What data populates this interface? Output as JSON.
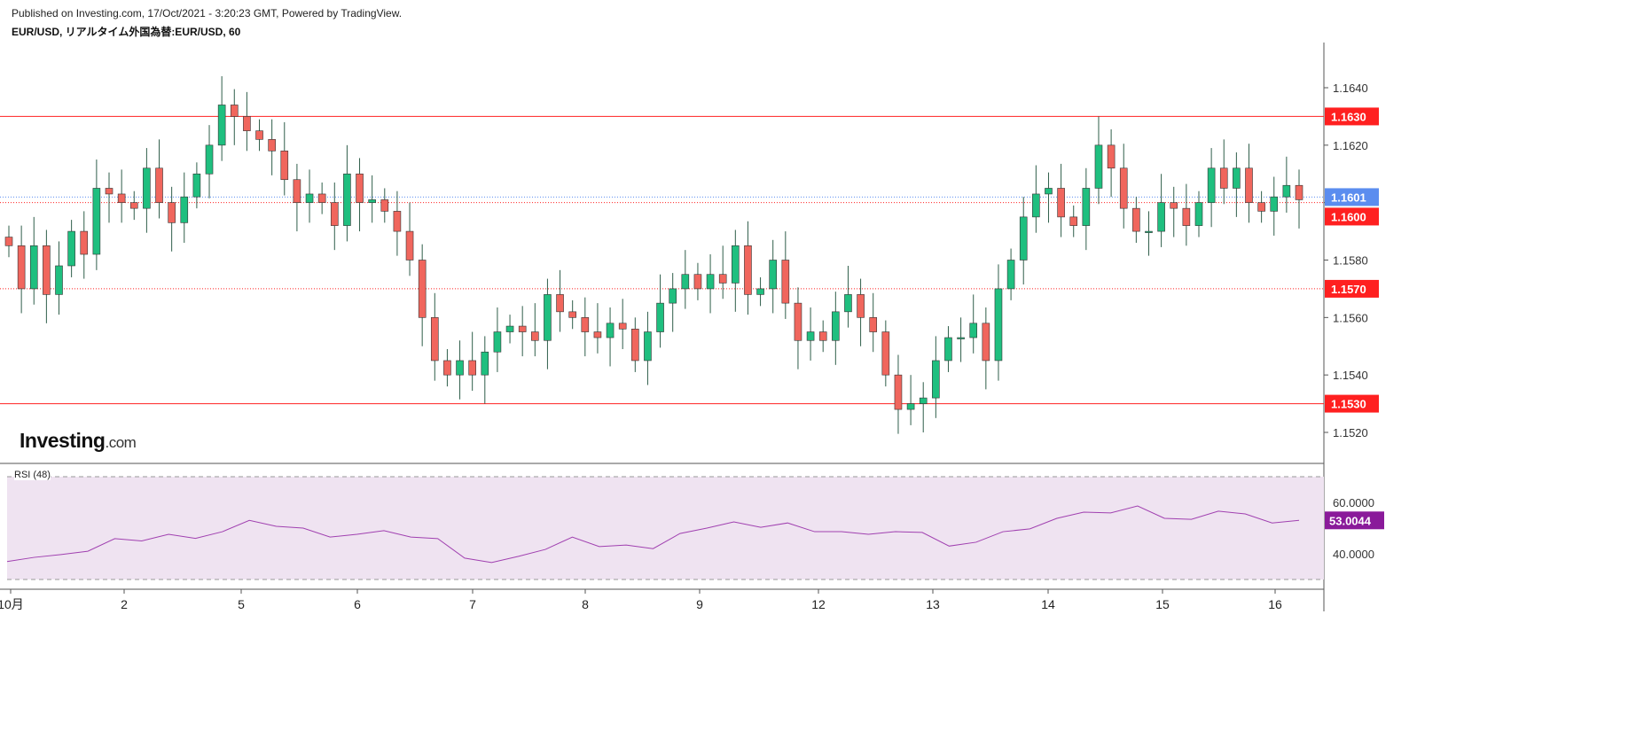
{
  "header": {
    "published": "Published on Investing.com, 17/Oct/2021 - 3:20:23 GMT, Powered by TradingView.",
    "symbol": "EUR/USD, リアルタイム外国為替:EUR/USD, 60"
  },
  "logo": {
    "text": "Investing",
    "suffix": ".com"
  },
  "colors": {
    "up": "#1fbf7f",
    "down": "#f0665d",
    "level": "#ff2020",
    "last": "#5b8def",
    "rsi": "#a040b0",
    "rsi_bg": "#efe3f1"
  },
  "chart_data": [
    {
      "type": "candlestick",
      "title": "EUR/USD, リアルタイム外国為替:EUR/USD, 60",
      "ylim": [
        1.151,
        1.166
      ],
      "y_ticks": [
        "1.1520",
        "1.1540",
        "1.1560",
        "1.1580",
        "1.1600",
        "1.1620",
        "1.1640"
      ],
      "x_ticks": [
        "10月",
        "2",
        "5",
        "6",
        "7",
        "8",
        "9",
        "12",
        "13",
        "14",
        "15",
        "16"
      ],
      "closes": [
        1.1585,
        1.157,
        1.1585,
        1.1568,
        1.1578,
        1.159,
        1.1582,
        1.1605,
        1.1603,
        1.16,
        1.1598,
        1.1612,
        1.16,
        1.1593,
        1.1602,
        1.161,
        1.162,
        1.1634,
        1.163,
        1.1625,
        1.1622,
        1.1618,
        1.1608,
        1.16,
        1.1603,
        1.16,
        1.1592,
        1.161,
        1.16,
        1.1601,
        1.1597,
        1.159,
        1.158,
        1.156,
        1.1545,
        1.154,
        1.1545,
        1.154,
        1.1548,
        1.1555,
        1.1557,
        1.1555,
        1.1552,
        1.1568,
        1.1562,
        1.156,
        1.1555,
        1.1553,
        1.1558,
        1.1556,
        1.1545,
        1.1555,
        1.1565,
        1.157,
        1.1575,
        1.157,
        1.1575,
        1.1572,
        1.1585,
        1.1568,
        1.157,
        1.158,
        1.1565,
        1.1552,
        1.1555,
        1.1552,
        1.1562,
        1.1568,
        1.156,
        1.1555,
        1.154,
        1.1528,
        1.153,
        1.1532,
        1.1545,
        1.1553,
        1.1553,
        1.1558,
        1.1545,
        1.157,
        1.158,
        1.1595,
        1.1603,
        1.1605,
        1.1595,
        1.1592,
        1.1605,
        1.162,
        1.1612,
        1.1598,
        1.159,
        1.159,
        1.16,
        1.1598,
        1.1592,
        1.16,
        1.1612,
        1.1605,
        1.1612,
        1.16,
        1.1597,
        1.1602,
        1.1606,
        1.1601
      ],
      "levels": [
        {
          "value": 1.163,
          "label": "1.1630",
          "style": "solid"
        },
        {
          "value": 1.16,
          "label": "1.1600",
          "style": "dotted"
        },
        {
          "value": 1.157,
          "label": "1.1570",
          "style": "dotted"
        },
        {
          "value": 1.153,
          "label": "1.1530",
          "style": "solid"
        }
      ],
      "last_price": {
        "value": 1.1601,
        "label": "1.1601"
      }
    },
    {
      "type": "line",
      "title": "RSI (48)",
      "ylim": [
        26,
        78
      ],
      "band": [
        30,
        70
      ],
      "y_ticks": [
        "40.0000",
        "60.0000"
      ],
      "values": [
        37,
        38.6,
        39.7,
        41,
        45.9,
        45,
        47.6,
        46,
        48.6,
        53,
        50.7,
        50,
        46.5,
        47.6,
        49,
        46.5,
        45.9,
        38.3,
        36.6,
        39,
        41.7,
        46.5,
        42.8,
        43.4,
        42,
        47.9,
        50,
        52.4,
        50.3,
        52,
        48.6,
        48.6,
        47.6,
        48.6,
        48.3,
        43,
        44.5,
        48.6,
        49.7,
        53.8,
        56.2,
        55.9,
        58.6,
        53.8,
        53.4,
        56.6,
        55.5,
        52,
        53
      ],
      "last": {
        "value": 53.0044,
        "label": "53.0044"
      }
    }
  ]
}
